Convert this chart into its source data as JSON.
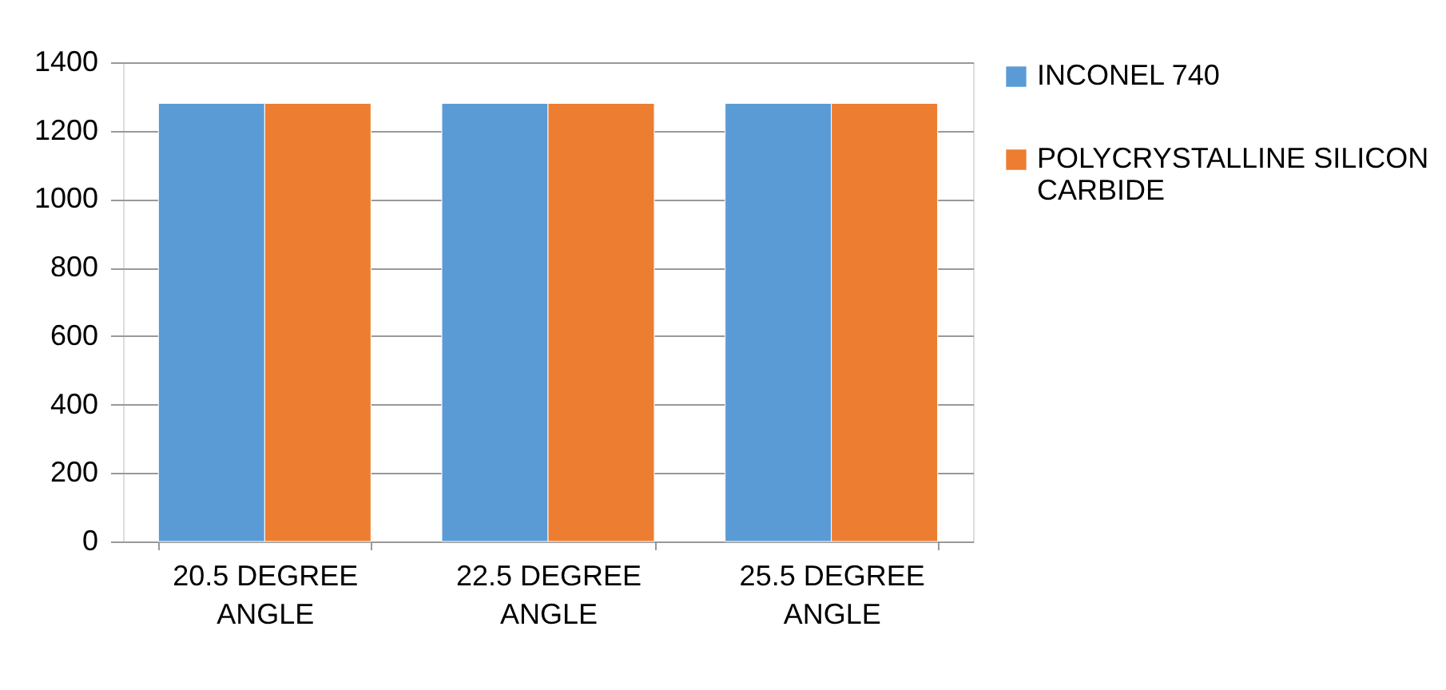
{
  "chart_data": {
    "type": "bar",
    "categories": [
      "20.5 DEGREE ANGLE",
      "22.5 DEGREE ANGLE",
      "25.5 DEGREE ANGLE"
    ],
    "series": [
      {
        "name": "INCONEL 740",
        "color": "#5b9bd5",
        "values": [
          1280,
          1280,
          1280
        ]
      },
      {
        "name": "POLYCRYSTALLINE SILICON CARBIDE",
        "color": "#ed7d31",
        "values": [
          1280,
          1280,
          1280
        ]
      }
    ],
    "ylim": [
      0,
      1400
    ],
    "yticks": [
      0,
      200,
      400,
      600,
      800,
      1000,
      1200,
      1400
    ],
    "grid": "y",
    "legend": "right"
  }
}
